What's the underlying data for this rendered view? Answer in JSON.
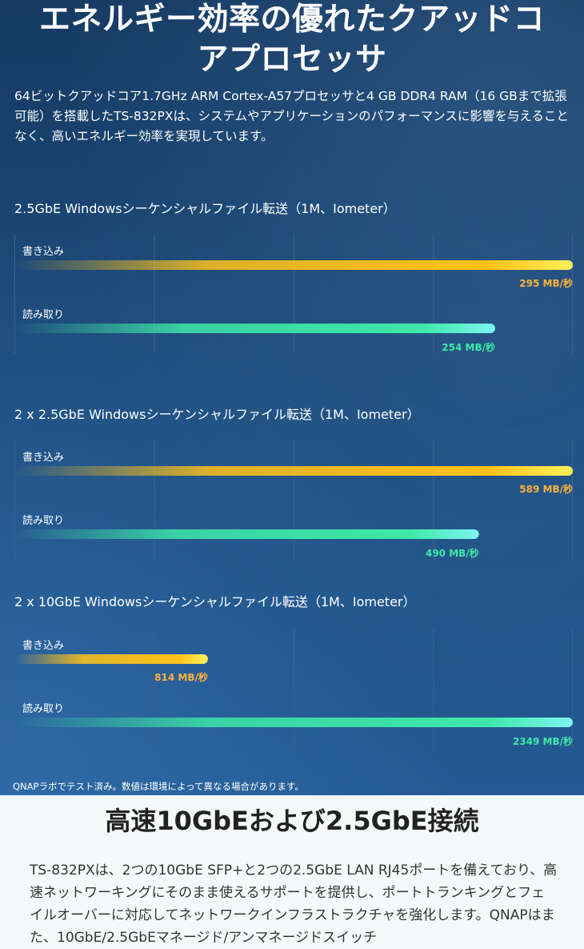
{
  "hero": {
    "title_line1": "エネルギー効率の優れたクアッドコ",
    "title_line2": "アプロセッサ",
    "intro": "64ビットクアッドコア1.7GHz ARM Cortex-A57プロセッサと4 GB DDR4 RAM（16 GBまで拡張可能）を搭載したTS-832PXは、システムやアプリケーションのパフォーマンスに影響を与えることなく、高いエネルギー効率を実現しています。",
    "footnote": "QNAPラボでテスト済み。数値は環境によって異なる場合があります。"
  },
  "colors": {
    "write_bar": "#ffc21a",
    "write_bar_end": "#fff05a",
    "write_label": "#ffb13b",
    "read_bar": "#3ee8a8",
    "read_bar_end": "#7ef5f0",
    "read_label": "#3ee8a8",
    "grid": "#3d6288"
  },
  "chart_data": [
    {
      "type": "bar",
      "orientation": "horizontal",
      "title": "2.5GbE Windowsシーケンシャルファイル転送（1M、Iometer）",
      "categories": [
        "書き込み",
        "読み取り"
      ],
      "values": [
        295,
        254
      ],
      "value_labels": [
        "295 MB/秒",
        "254 MB/秒"
      ],
      "xlim": [
        0,
        295
      ],
      "grid": true
    },
    {
      "type": "bar",
      "orientation": "horizontal",
      "title": "2 x 2.5GbE Windowsシーケンシャルファイル転送（1M、Iometer）",
      "categories": [
        "書き込み",
        "読み取り"
      ],
      "values": [
        589,
        490
      ],
      "value_labels": [
        "589 MB/秒",
        "490 MB/秒"
      ],
      "xlim": [
        0,
        589
      ],
      "grid": true
    },
    {
      "type": "bar",
      "orientation": "horizontal",
      "title": "2 x 10GbE Windowsシーケンシャルファイル転送（1M、Iometer）",
      "categories": [
        "書き込み",
        "読み取り"
      ],
      "values": [
        814,
        2349
      ],
      "value_labels": [
        "814 MB/秒",
        "2349 MB/秒"
      ],
      "xlim": [
        0,
        2349
      ],
      "grid": true
    }
  ],
  "section2": {
    "title": "高速10GbEおよび2.5GbE接続",
    "text": "TS-832PXは、2つの10GbE SFP+と2つの2.5GbE LAN RJ45ポートを備えており、高速ネットワーキングにそのまま使えるサポートを提供し、ポートトランキングとフェイルオーバーに対応してネットワークインフラストラクチャを強化します。QNAPはまた、10GbE/2.5GbEマネージド/アンマネージドスイッチ"
  }
}
